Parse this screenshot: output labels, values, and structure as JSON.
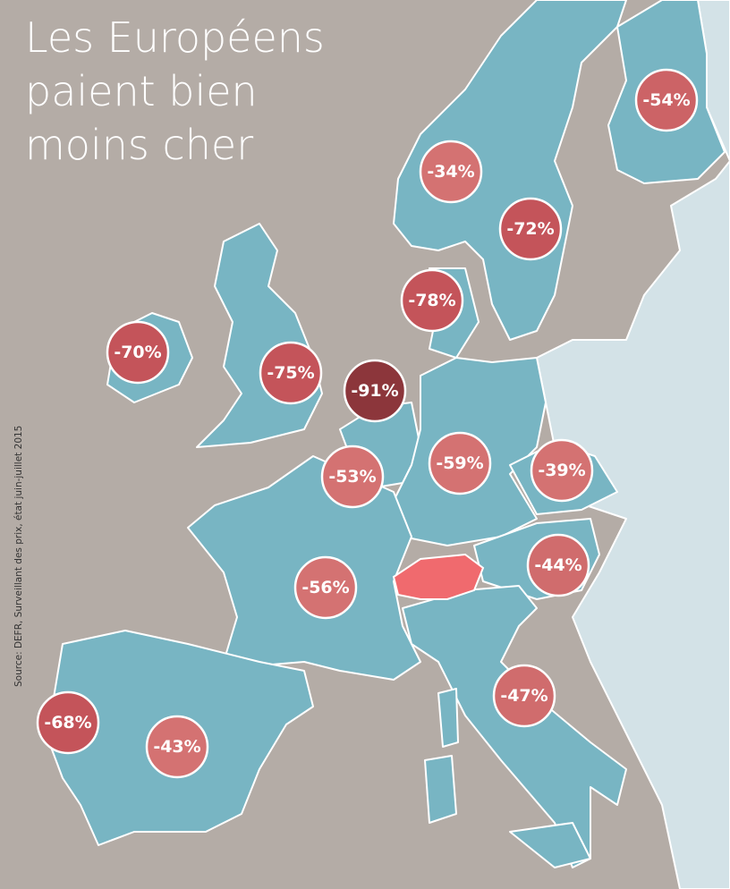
{
  "title": {
    "lines": [
      "Les Européens",
      "paient bien",
      "moins cher"
    ]
  },
  "source": "Source: DEFR, Surveillant des prix, état juin-juillet 2015",
  "markers": [
    {
      "label": "-54%",
      "color": "#cc6366"
    },
    {
      "label": "-34%",
      "color": "#d47272"
    },
    {
      "label": "-72%",
      "color": "#c4545a"
    },
    {
      "label": "-78%",
      "color": "#c4545a"
    },
    {
      "label": "-70%",
      "color": "#c4545a"
    },
    {
      "label": "-75%",
      "color": "#c4545a"
    },
    {
      "label": "-91%",
      "color": "#8c363b"
    },
    {
      "label": "-53%",
      "color": "#d47272"
    },
    {
      "label": "-59%",
      "color": "#d47272"
    },
    {
      "label": "-39%",
      "color": "#d47272"
    },
    {
      "label": "-44%",
      "color": "#d06c6d"
    },
    {
      "label": "-56%",
      "color": "#d47272"
    },
    {
      "label": "-47%",
      "color": "#d06c6d"
    },
    {
      "label": "-68%",
      "color": "#c4545a"
    },
    {
      "label": "-43%",
      "color": "#d47272"
    }
  ]
}
